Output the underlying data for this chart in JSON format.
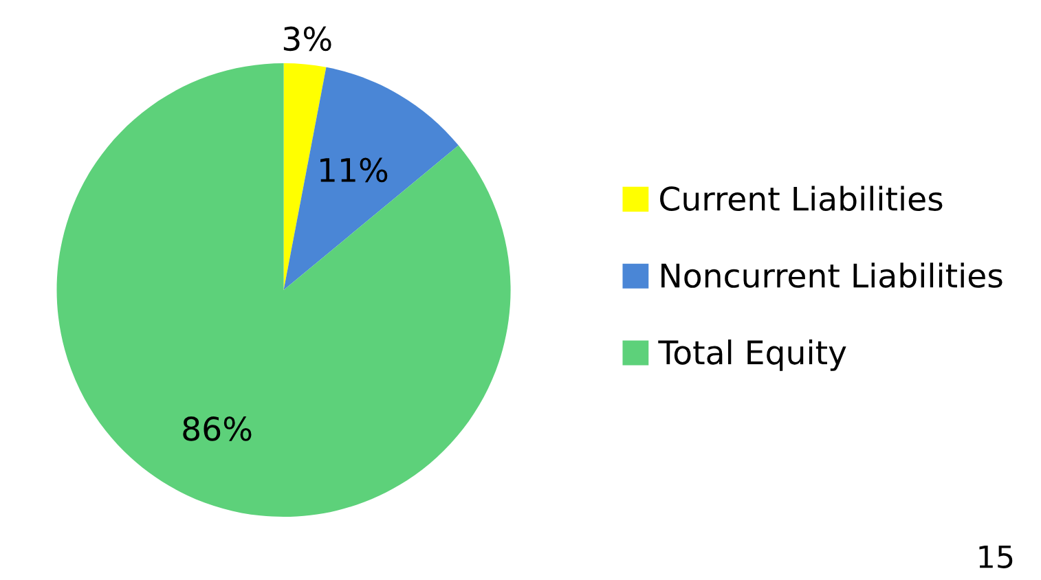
{
  "chart_data": {
    "type": "pie",
    "categories": [
      "Current Liabilities",
      "Noncurrent Liabilities",
      "Total Equity"
    ],
    "values": [
      3,
      11,
      86
    ],
    "value_labels": [
      "3%",
      "11%",
      "86%"
    ],
    "colors": [
      "#ffff00",
      "#4a86d6",
      "#5dd17a"
    ],
    "legend": "right",
    "annotations": [
      "15"
    ]
  }
}
